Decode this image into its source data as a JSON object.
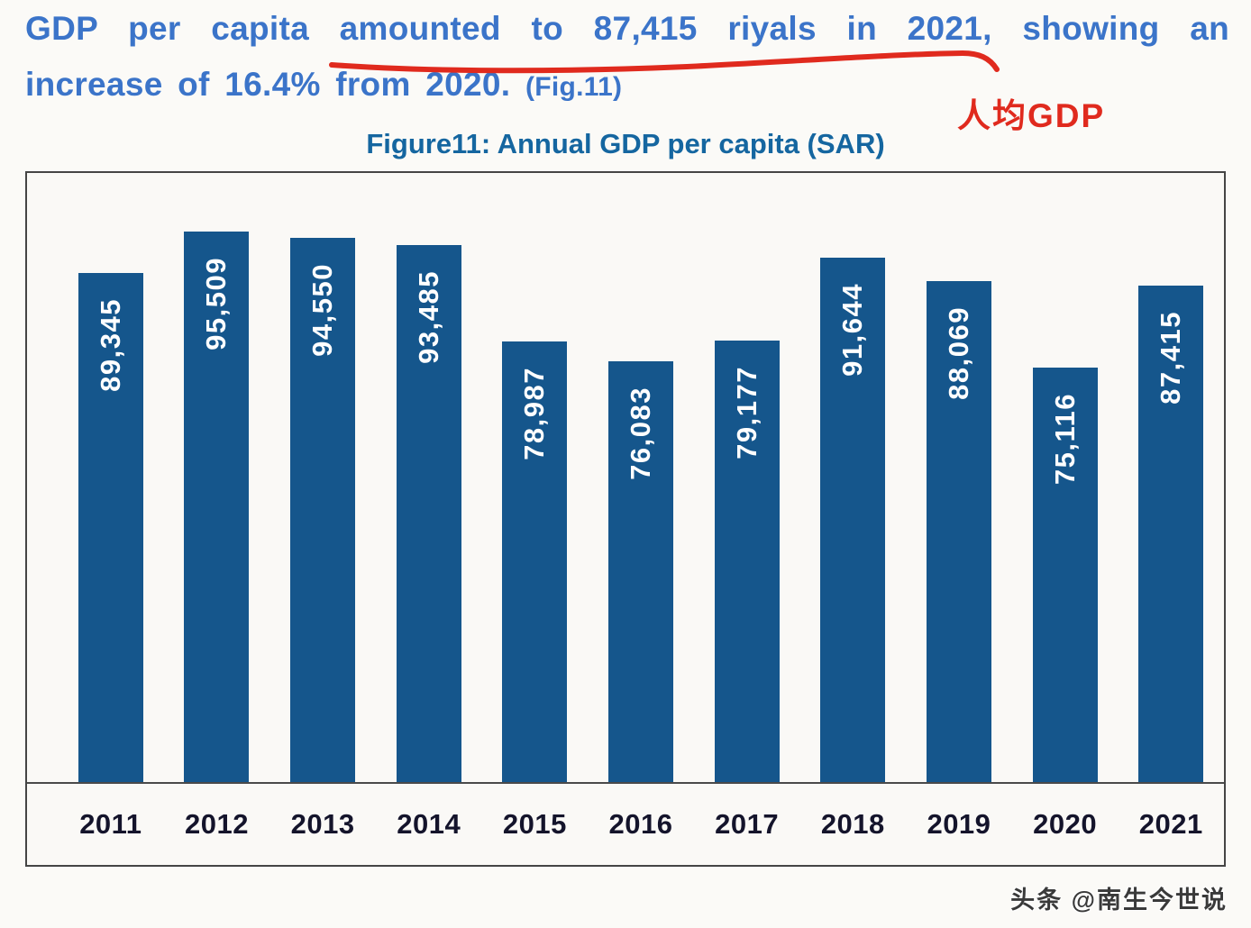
{
  "header": {
    "line1": "GDP per capita amounted to 87,415 riyals in 2021, showing an",
    "line2": "increase of 16.4% from 2020.",
    "fig_ref": "(Fig.11)",
    "cn_annotation": "人均GDP",
    "text_color": "#3b74c9",
    "underline_color": "#e02a1e"
  },
  "figure_title": {
    "text": "Figure11: Annual GDP per capita (SAR)",
    "color": "#1566a0"
  },
  "chart_data": {
    "type": "bar",
    "title": "Figure11: Annual GDP per capita (SAR)",
    "categories": [
      "2011",
      "2012",
      "2013",
      "2014",
      "2015",
      "2016",
      "2017",
      "2018",
      "2019",
      "2020",
      "2021"
    ],
    "values": [
      89345,
      95509,
      94550,
      93485,
      78987,
      76083,
      79177,
      91644,
      88069,
      75116,
      87415
    ],
    "value_labels": [
      "89,345",
      "95,509",
      "94,550",
      "93,485",
      "78,987",
      "76,083",
      "79,177",
      "91,644",
      "88,069",
      "75,116",
      "87,415"
    ],
    "xlabel": "",
    "ylabel": "",
    "ylim": [
      0,
      100000
    ],
    "grid": false,
    "legend": "none",
    "bar_color": "#15568c",
    "value_label_color": "#ffffff",
    "value_label_orientation": "vertical-bottom-up"
  },
  "watermark": {
    "text": "头条 @南生今世说"
  }
}
